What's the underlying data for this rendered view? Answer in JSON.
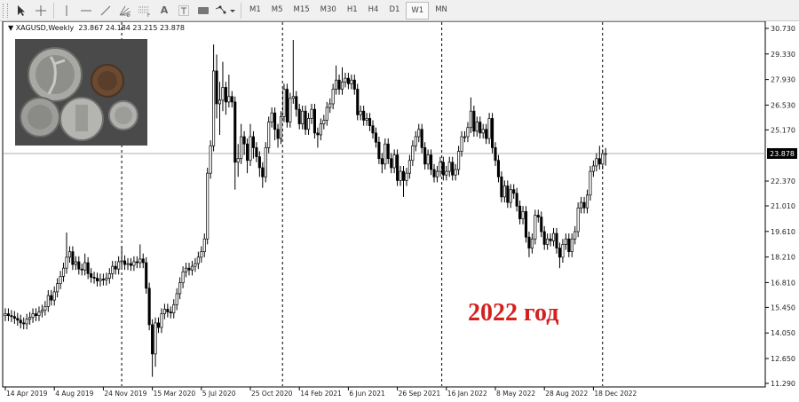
{
  "toolbar": {
    "tools": [
      "cursor-icon",
      "crosshair-icon",
      "vertical-line-icon",
      "horizontal-line-icon",
      "trendline-icon",
      "fibonacci-fan-icon",
      "fibonacci-retracement-icon",
      "text-icon",
      "text-label-icon",
      "rectangle-icon",
      "shapes-dropdown-icon"
    ],
    "text_tool": "A",
    "timeframes": [
      "M1",
      "M5",
      "M15",
      "M30",
      "H1",
      "H4",
      "D1",
      "W1",
      "MN"
    ],
    "active_timeframe": "W1"
  },
  "header": {
    "symbol": "XAGUSD,Weekly",
    "open": "23.867",
    "high": "24.184",
    "low": "23.215",
    "close": "23.878"
  },
  "annotation": "2022 год",
  "colors": {
    "up": "#ffffff",
    "down": "#000000",
    "outline": "#000000",
    "price_line": "#b0b0b0",
    "price_label_bg": "#000000",
    "annotation": "#d52020"
  },
  "chart_data": {
    "type": "candlestick",
    "symbol": "XAGUSD",
    "timeframe": "Weekly",
    "current_price": "23.878",
    "ylim": [
      11.29,
      30.73
    ],
    "y_ticks": [
      "30.730",
      "29.330",
      "27.930",
      "26.530",
      "25.170",
      "22.370",
      "21.010",
      "19.610",
      "18.210",
      "16.810",
      "15.450",
      "14.050",
      "12.650",
      "11.290"
    ],
    "x_ticks": [
      "14 Apr 2019",
      "4 Aug 2019",
      "24 Nov 2019",
      "15 Mar 2020",
      "5 Jul 2020",
      "25 Oct 2020",
      "14 Feb 2021",
      "6 Jun 2021",
      "26 Sep 2021",
      "16 Jan 2022",
      "8 May 2022",
      "28 Aug 2022",
      "18 Dec 2022"
    ],
    "x_tick_every_weeks": 16,
    "grid": false,
    "candles_ohlc": [
      [
        15.0,
        15.4,
        14.7,
        15.1
      ],
      [
        15.1,
        15.4,
        14.7,
        15.0
      ],
      [
        15.0,
        15.3,
        14.65,
        14.95
      ],
      [
        14.95,
        15.25,
        14.55,
        14.85
      ],
      [
        14.85,
        15.15,
        14.45,
        14.75
      ],
      [
        14.75,
        15.05,
        14.3,
        14.6
      ],
      [
        14.6,
        14.9,
        14.25,
        14.55
      ],
      [
        14.55,
        15.1,
        14.25,
        14.8
      ],
      [
        14.8,
        15.2,
        14.5,
        14.9
      ],
      [
        14.9,
        15.4,
        14.6,
        15.1
      ],
      [
        15.1,
        15.4,
        14.7,
        15.0
      ],
      [
        15.0,
        15.5,
        14.7,
        15.2
      ],
      [
        15.2,
        15.6,
        14.9,
        15.3
      ],
      [
        15.3,
        15.8,
        15.0,
        15.5
      ],
      [
        15.5,
        16.4,
        15.2,
        16.1
      ],
      [
        16.1,
        16.4,
        15.55,
        15.85
      ],
      [
        15.85,
        16.6,
        15.55,
        16.3
      ],
      [
        16.3,
        17.05,
        16.0,
        16.75
      ],
      [
        16.75,
        17.45,
        16.45,
        17.15
      ],
      [
        17.15,
        17.9,
        16.85,
        17.6
      ],
      [
        17.6,
        19.55,
        17.3,
        18.2
      ],
      [
        18.2,
        18.8,
        17.9,
        18.5
      ],
      [
        18.5,
        18.8,
        17.5,
        17.8
      ],
      [
        17.8,
        18.25,
        17.5,
        17.95
      ],
      [
        17.95,
        18.25,
        17.25,
        17.55
      ],
      [
        17.55,
        17.85,
        17.2,
        17.5
      ],
      [
        17.5,
        18.4,
        17.2,
        17.9
      ],
      [
        17.9,
        18.2,
        17.0,
        17.3
      ],
      [
        17.3,
        17.6,
        16.8,
        17.1
      ],
      [
        17.1,
        17.4,
        16.75,
        17.05
      ],
      [
        17.05,
        17.35,
        16.6,
        16.9
      ],
      [
        16.9,
        17.3,
        16.6,
        17.0
      ],
      [
        17.0,
        17.3,
        16.65,
        16.95
      ],
      [
        16.95,
        17.35,
        16.65,
        17.05
      ],
      [
        17.05,
        17.6,
        16.75,
        17.3
      ],
      [
        17.3,
        18.0,
        17.0,
        17.7
      ],
      [
        17.7,
        18.0,
        17.25,
        17.55
      ],
      [
        17.55,
        18.25,
        17.25,
        17.95
      ],
      [
        17.95,
        18.8,
        17.65,
        18.0
      ],
      [
        18.0,
        18.3,
        17.5,
        17.8
      ],
      [
        17.8,
        18.15,
        17.5,
        17.85
      ],
      [
        17.85,
        18.15,
        17.45,
        17.75
      ],
      [
        17.75,
        18.25,
        17.45,
        17.95
      ],
      [
        17.95,
        18.25,
        17.6,
        17.9
      ],
      [
        17.9,
        18.9,
        17.6,
        18.1
      ],
      [
        18.1,
        18.4,
        17.6,
        17.9
      ],
      [
        17.9,
        18.2,
        16.2,
        16.5
      ],
      [
        16.5,
        16.8,
        14.2,
        14.5
      ],
      [
        14.5,
        14.8,
        11.65,
        12.9
      ],
      [
        12.9,
        14.9,
        12.2,
        14.6
      ],
      [
        14.6,
        14.9,
        14.05,
        14.35
      ],
      [
        14.35,
        15.4,
        14.05,
        15.1
      ],
      [
        15.1,
        15.65,
        14.8,
        15.35
      ],
      [
        15.35,
        15.65,
        14.9,
        15.2
      ],
      [
        15.2,
        15.5,
        14.85,
        15.15
      ],
      [
        15.15,
        15.9,
        14.85,
        15.6
      ],
      [
        15.6,
        16.5,
        15.3,
        16.2
      ],
      [
        16.2,
        17.1,
        15.9,
        16.8
      ],
      [
        16.8,
        17.7,
        16.5,
        17.4
      ],
      [
        17.4,
        17.9,
        17.1,
        17.6
      ],
      [
        17.6,
        17.9,
        17.2,
        17.5
      ],
      [
        17.5,
        18.0,
        17.2,
        17.7
      ],
      [
        17.7,
        18.15,
        17.4,
        17.85
      ],
      [
        17.85,
        18.5,
        17.55,
        18.2
      ],
      [
        18.2,
        18.8,
        17.9,
        18.5
      ],
      [
        18.5,
        19.5,
        18.2,
        19.2
      ],
      [
        19.2,
        23.1,
        18.9,
        22.8
      ],
      [
        22.8,
        24.6,
        22.5,
        24.3
      ],
      [
        24.3,
        29.85,
        24.0,
        28.4
      ],
      [
        28.4,
        29.3,
        25.8,
        26.6
      ],
      [
        26.6,
        27.8,
        24.9,
        26.8
      ],
      [
        26.8,
        28.9,
        26.2,
        27.5
      ],
      [
        27.5,
        27.8,
        26.0,
        26.7
      ],
      [
        26.7,
        28.2,
        26.4,
        27.0
      ],
      [
        27.0,
        27.3,
        26.4,
        26.7
      ],
      [
        26.7,
        27.0,
        21.9,
        23.4
      ],
      [
        23.4,
        24.4,
        22.6,
        23.6
      ],
      [
        23.6,
        25.5,
        23.3,
        24.8
      ],
      [
        24.8,
        25.1,
        23.8,
        24.4
      ],
      [
        24.4,
        24.7,
        22.8,
        23.5
      ],
      [
        23.5,
        25.5,
        23.2,
        24.8
      ],
      [
        24.8,
        25.1,
        23.6,
        24.2
      ],
      [
        24.2,
        24.5,
        23.4,
        23.7
      ],
      [
        23.7,
        24.0,
        22.6,
        23.1
      ],
      [
        23.1,
        23.4,
        22.0,
        22.6
      ],
      [
        22.6,
        24.5,
        22.3,
        24.2
      ],
      [
        24.2,
        25.9,
        23.9,
        25.6
      ],
      [
        25.6,
        26.4,
        25.3,
        26.1
      ],
      [
        26.1,
        26.4,
        24.6,
        25.2
      ],
      [
        25.2,
        25.5,
        24.2,
        24.7
      ],
      [
        24.7,
        26.2,
        24.4,
        25.9
      ],
      [
        25.9,
        27.7,
        25.6,
        27.4
      ],
      [
        27.4,
        27.7,
        25.3,
        25.6
      ],
      [
        25.6,
        27.2,
        25.3,
        26.9
      ],
      [
        26.9,
        30.1,
        26.6,
        27.0
      ],
      [
        27.0,
        27.3,
        25.9,
        26.3
      ],
      [
        26.3,
        26.6,
        25.2,
        25.5
      ],
      [
        25.5,
        26.5,
        25.2,
        26.2
      ],
      [
        26.2,
        26.5,
        24.9,
        25.2
      ],
      [
        25.2,
        26.1,
        24.9,
        25.8
      ],
      [
        25.8,
        26.6,
        25.5,
        26.3
      ],
      [
        26.3,
        26.6,
        24.7,
        25.0
      ],
      [
        25.0,
        25.3,
        24.2,
        24.9
      ],
      [
        24.9,
        25.8,
        24.6,
        25.5
      ],
      [
        25.5,
        26.0,
        25.2,
        25.7
      ],
      [
        25.7,
        26.7,
        25.4,
        26.4
      ],
      [
        26.4,
        26.9,
        26.1,
        26.6
      ],
      [
        26.6,
        27.7,
        26.3,
        27.4
      ],
      [
        27.4,
        28.7,
        27.1,
        27.9
      ],
      [
        27.9,
        28.2,
        27.1,
        27.4
      ],
      [
        27.4,
        28.6,
        27.1,
        27.8
      ],
      [
        27.8,
        28.3,
        27.5,
        28.0
      ],
      [
        28.0,
        28.3,
        27.4,
        27.7
      ],
      [
        27.7,
        28.2,
        27.4,
        27.9
      ],
      [
        27.9,
        28.2,
        27.1,
        27.4
      ],
      [
        27.4,
        27.7,
        25.7,
        26.0
      ],
      [
        26.0,
        26.5,
        25.7,
        26.2
      ],
      [
        26.2,
        26.5,
        25.4,
        25.7
      ],
      [
        25.7,
        26.1,
        25.4,
        25.8
      ],
      [
        25.8,
        26.1,
        25.1,
        25.4
      ],
      [
        25.4,
        25.7,
        24.7,
        25.0
      ],
      [
        25.0,
        25.3,
        24.2,
        24.5
      ],
      [
        24.5,
        24.8,
        23.3,
        23.6
      ],
      [
        23.6,
        23.9,
        22.8,
        23.3
      ],
      [
        23.3,
        24.7,
        23.0,
        24.4
      ],
      [
        24.4,
        24.7,
        23.3,
        23.6
      ],
      [
        23.6,
        23.9,
        22.8,
        23.1
      ],
      [
        23.1,
        24.1,
        22.8,
        23.8
      ],
      [
        23.8,
        24.1,
        22.1,
        22.4
      ],
      [
        22.4,
        23.2,
        22.1,
        22.9
      ],
      [
        22.9,
        23.2,
        21.5,
        22.4
      ],
      [
        22.4,
        23.1,
        22.1,
        22.8
      ],
      [
        22.8,
        23.8,
        22.5,
        23.5
      ],
      [
        23.5,
        24.6,
        23.2,
        24.3
      ],
      [
        24.3,
        25.1,
        24.0,
        24.8
      ],
      [
        24.8,
        25.5,
        24.5,
        25.2
      ],
      [
        25.2,
        25.5,
        23.9,
        24.2
      ],
      [
        24.2,
        24.5,
        23.0,
        23.3
      ],
      [
        23.3,
        24.1,
        23.0,
        23.8
      ],
      [
        23.8,
        24.1,
        22.7,
        23.0
      ],
      [
        23.0,
        23.3,
        22.3,
        22.6
      ],
      [
        22.6,
        23.2,
        22.3,
        22.9
      ],
      [
        22.9,
        23.7,
        22.6,
        23.4
      ],
      [
        23.4,
        23.7,
        22.4,
        22.7
      ],
      [
        22.7,
        23.2,
        22.4,
        22.9
      ],
      [
        22.9,
        23.7,
        22.6,
        23.4
      ],
      [
        23.4,
        23.7,
        22.4,
        22.7
      ],
      [
        22.7,
        23.3,
        22.4,
        23.0
      ],
      [
        23.0,
        24.3,
        22.7,
        24.0
      ],
      [
        24.0,
        25.1,
        23.7,
        24.8
      ],
      [
        24.8,
        25.1,
        24.5,
        24.8
      ],
      [
        24.8,
        25.6,
        24.5,
        25.3
      ],
      [
        25.3,
        26.95,
        25.0,
        26.2
      ],
      [
        26.2,
        26.5,
        24.8,
        25.1
      ],
      [
        25.1,
        25.9,
        24.8,
        25.6
      ],
      [
        25.6,
        25.9,
        24.7,
        25.0
      ],
      [
        25.0,
        25.5,
        24.7,
        25.2
      ],
      [
        25.2,
        25.5,
        24.4,
        24.7
      ],
      [
        24.7,
        26.1,
        24.4,
        25.8
      ],
      [
        25.8,
        26.1,
        23.9,
        24.2
      ],
      [
        24.2,
        24.5,
        23.2,
        23.5
      ],
      [
        23.5,
        23.8,
        22.3,
        22.6
      ],
      [
        22.6,
        22.9,
        21.2,
        21.5
      ],
      [
        21.5,
        22.4,
        21.2,
        22.1
      ],
      [
        22.1,
        22.4,
        20.9,
        21.2
      ],
      [
        21.2,
        22.2,
        20.9,
        21.9
      ],
      [
        21.9,
        22.2,
        21.4,
        21.7
      ],
      [
        21.7,
        22.0,
        20.7,
        21.0
      ],
      [
        21.0,
        21.3,
        20.0,
        20.3
      ],
      [
        20.3,
        21.0,
        20.0,
        20.7
      ],
      [
        20.7,
        21.0,
        19.0,
        19.3
      ],
      [
        19.3,
        19.6,
        18.2,
        18.7
      ],
      [
        18.7,
        19.5,
        18.4,
        19.2
      ],
      [
        19.2,
        20.8,
        18.9,
        20.5
      ],
      [
        20.5,
        20.8,
        20.1,
        20.4
      ],
      [
        20.4,
        20.7,
        19.3,
        19.6
      ],
      [
        19.6,
        19.9,
        18.6,
        18.9
      ],
      [
        18.9,
        19.5,
        18.6,
        19.2
      ],
      [
        19.2,
        19.5,
        18.8,
        19.1
      ],
      [
        19.1,
        19.8,
        18.8,
        19.5
      ],
      [
        19.5,
        19.8,
        18.4,
        18.7
      ],
      [
        18.7,
        19.0,
        17.6,
        18.2
      ],
      [
        18.2,
        19.2,
        17.9,
        18.9
      ],
      [
        18.9,
        19.5,
        18.6,
        19.2
      ],
      [
        19.2,
        19.5,
        18.2,
        18.5
      ],
      [
        18.5,
        19.5,
        18.2,
        19.2
      ],
      [
        19.2,
        19.9,
        18.9,
        19.6
      ],
      [
        19.6,
        21.2,
        19.3,
        20.9
      ],
      [
        20.9,
        21.5,
        20.6,
        21.2
      ],
      [
        21.2,
        21.5,
        20.6,
        20.9
      ],
      [
        20.9,
        21.9,
        20.6,
        21.6
      ],
      [
        21.6,
        23.2,
        21.3,
        22.9
      ],
      [
        22.9,
        23.5,
        22.6,
        23.2
      ],
      [
        23.2,
        23.9,
        22.9,
        23.6
      ],
      [
        23.6,
        24.3,
        23.0,
        23.3
      ],
      [
        23.3,
        24.1,
        23.0,
        23.867
      ],
      [
        23.867,
        24.184,
        23.215,
        23.878
      ]
    ]
  }
}
